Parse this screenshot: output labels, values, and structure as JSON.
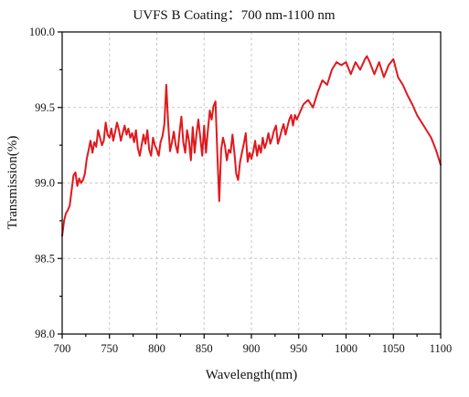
{
  "chart_data": {
    "type": "line",
    "title": "UVFS B Coating：700 nm-1100 nm",
    "xlabel": "Wavelength(nm)",
    "ylabel": "Transmission(%)",
    "xlim": [
      700,
      1100
    ],
    "ylim": [
      98.0,
      100.0
    ],
    "xticks": [
      700,
      750,
      800,
      850,
      900,
      950,
      1000,
      1050,
      1100
    ],
    "xtick_labels": [
      "700",
      "750",
      "800",
      "850",
      "900",
      "950",
      "1000",
      "1050",
      "1100"
    ],
    "yticks": [
      98.0,
      98.5,
      99.0,
      99.5,
      100.0
    ],
    "ytick_labels": [
      "98.0",
      "98.5",
      "99.0",
      "99.5",
      "100.0"
    ],
    "grid": true,
    "series": [
      {
        "color": "#e0191e",
        "x": [
          700,
          702,
          704,
          706,
          708,
          710,
          712,
          714,
          716,
          718,
          720,
          722,
          724,
          726,
          728,
          730,
          732,
          734,
          736,
          738,
          740,
          742,
          744,
          746,
          748,
          750,
          752,
          754,
          756,
          758,
          760,
          762,
          764,
          766,
          768,
          770,
          772,
          774,
          776,
          778,
          780,
          782,
          784,
          786,
          788,
          790,
          792,
          794,
          796,
          798,
          800,
          802,
          804,
          806,
          808,
          810,
          812,
          814,
          816,
          818,
          820,
          822,
          824,
          826,
          828,
          830,
          832,
          834,
          836,
          838,
          840,
          842,
          844,
          846,
          848,
          850,
          852,
          854,
          856,
          858,
          860,
          862,
          864,
          866,
          868,
          870,
          872,
          874,
          876,
          878,
          880,
          882,
          884,
          886,
          888,
          890,
          892,
          894,
          896,
          898,
          900,
          902,
          904,
          906,
          908,
          910,
          912,
          914,
          916,
          918,
          920,
          922,
          924,
          926,
          928,
          930,
          932,
          934,
          936,
          938,
          940,
          942,
          944,
          946,
          948,
          950,
          955,
          960,
          965,
          970,
          975,
          980,
          985,
          990,
          995,
          1000,
          1005,
          1010,
          1015,
          1020,
          1022,
          1025,
          1030,
          1035,
          1040,
          1045,
          1050,
          1055,
          1060,
          1065,
          1070,
          1075,
          1080,
          1085,
          1090,
          1095,
          1100
        ],
        "y": [
          98.65,
          98.75,
          98.8,
          98.82,
          98.85,
          98.95,
          99.05,
          99.07,
          98.98,
          99.03,
          99.0,
          99.02,
          99.06,
          99.16,
          99.22,
          99.28,
          99.2,
          99.27,
          99.24,
          99.35,
          99.3,
          99.25,
          99.28,
          99.4,
          99.32,
          99.3,
          99.36,
          99.28,
          99.34,
          99.4,
          99.35,
          99.28,
          99.33,
          99.38,
          99.32,
          99.36,
          99.3,
          99.33,
          99.27,
          99.35,
          99.23,
          99.18,
          99.25,
          99.32,
          99.26,
          99.35,
          99.22,
          99.18,
          99.3,
          99.25,
          99.22,
          99.18,
          99.27,
          99.31,
          99.39,
          99.65,
          99.4,
          99.21,
          99.27,
          99.34,
          99.25,
          99.2,
          99.33,
          99.44,
          99.27,
          99.2,
          99.35,
          99.28,
          99.15,
          99.37,
          99.2,
          99.33,
          99.42,
          99.3,
          99.18,
          99.38,
          99.2,
          99.35,
          99.48,
          99.42,
          99.51,
          99.54,
          99.2,
          98.88,
          99.22,
          99.3,
          99.25,
          99.15,
          99.22,
          99.2,
          99.32,
          99.2,
          99.06,
          99.02,
          99.14,
          99.2,
          99.26,
          99.33,
          99.14,
          99.2,
          99.16,
          99.21,
          99.28,
          99.18,
          99.25,
          99.2,
          99.3,
          99.23,
          99.27,
          99.33,
          99.26,
          99.3,
          99.35,
          99.38,
          99.26,
          99.3,
          99.35,
          99.39,
          99.32,
          99.37,
          99.42,
          99.45,
          99.38,
          99.45,
          99.42,
          99.45,
          99.52,
          99.55,
          99.5,
          99.6,
          99.68,
          99.65,
          99.75,
          99.8,
          99.78,
          99.8,
          99.72,
          99.8,
          99.75,
          99.82,
          99.84,
          99.8,
          99.72,
          99.8,
          99.7,
          99.78,
          99.82,
          99.7,
          99.65,
          99.58,
          99.52,
          99.45,
          99.4,
          99.35,
          99.3,
          99.22,
          99.12
        ]
      }
    ]
  }
}
